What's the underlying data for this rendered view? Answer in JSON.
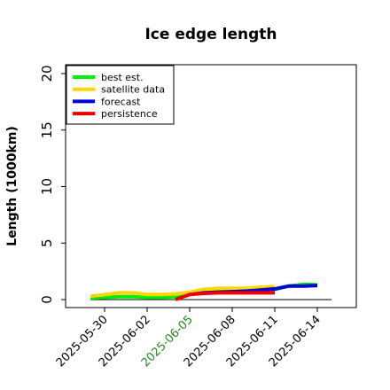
{
  "chart_data": {
    "type": "line",
    "title": "Ice edge length",
    "xlabel": "",
    "ylabel": "Length (1000km)",
    "ylim": [
      0,
      20
    ],
    "yticks": [
      "0",
      "5",
      "10",
      "15",
      "20"
    ],
    "xlim": [
      "2025-05-28",
      "2025-06-16"
    ],
    "xticks": [
      {
        "label": "2025-05-30",
        "date": "2025-05-30",
        "color": "#000000"
      },
      {
        "label": "2025-06-02",
        "date": "2025-06-02",
        "color": "#000000"
      },
      {
        "label": "2025-06-05",
        "date": "2025-06-05",
        "color": "#228b22"
      },
      {
        "label": "2025-06-08",
        "date": "2025-06-08",
        "color": "#000000"
      },
      {
        "label": "2025-06-11",
        "date": "2025-06-11",
        "color": "#000000"
      },
      {
        "label": "2025-06-14",
        "date": "2025-06-14",
        "color": "#000000"
      }
    ],
    "grid": false,
    "legend_position": "top-left",
    "series": [
      {
        "name": "best est.",
        "color": "#00ee00",
        "x": [
          "2025-05-29",
          "2025-05-30",
          "2025-05-31",
          "2025-06-01",
          "2025-06-02",
          "2025-06-03",
          "2025-06-04",
          "2025-06-05",
          "2025-06-06",
          "2025-06-07",
          "2025-06-08",
          "2025-06-09",
          "2025-06-10",
          "2025-06-11",
          "2025-06-12",
          "2025-06-13",
          "2025-06-14"
        ],
        "y": [
          0.15,
          0.2,
          0.25,
          0.25,
          0.2,
          0.2,
          0.25,
          0.45,
          0.7,
          0.75,
          0.75,
          0.75,
          0.8,
          0.9,
          1.2,
          1.35,
          1.3
        ]
      },
      {
        "name": "satellite data",
        "color": "#ffd700",
        "x": [
          "2025-05-29",
          "2025-05-30",
          "2025-05-31",
          "2025-06-01",
          "2025-06-02",
          "2025-06-03",
          "2025-06-04",
          "2025-06-05",
          "2025-06-06",
          "2025-06-07",
          "2025-06-08",
          "2025-06-09",
          "2025-06-10",
          "2025-06-11"
        ],
        "y": [
          0.3,
          0.45,
          0.6,
          0.6,
          0.45,
          0.45,
          0.5,
          0.65,
          0.9,
          1.0,
          1.0,
          1.0,
          1.1,
          1.15
        ]
      },
      {
        "name": "forecast",
        "color": "#0000dd",
        "x": [
          "2025-06-05",
          "2025-06-06",
          "2025-06-07",
          "2025-06-08",
          "2025-06-09",
          "2025-06-10",
          "2025-06-11",
          "2025-06-12",
          "2025-06-13",
          "2025-06-14"
        ],
        "y": [
          0.45,
          0.6,
          0.65,
          0.7,
          0.75,
          0.85,
          0.95,
          1.2,
          1.2,
          1.25
        ]
      },
      {
        "name": "persistence",
        "color": "#ee0000",
        "x": [
          "2025-06-04",
          "2025-06-05",
          "2025-06-06",
          "2025-06-07",
          "2025-06-08",
          "2025-06-09",
          "2025-06-10",
          "2025-06-11"
        ],
        "y": [
          0.0,
          0.45,
          0.55,
          0.6,
          0.6,
          0.6,
          0.6,
          0.6
        ]
      }
    ]
  }
}
